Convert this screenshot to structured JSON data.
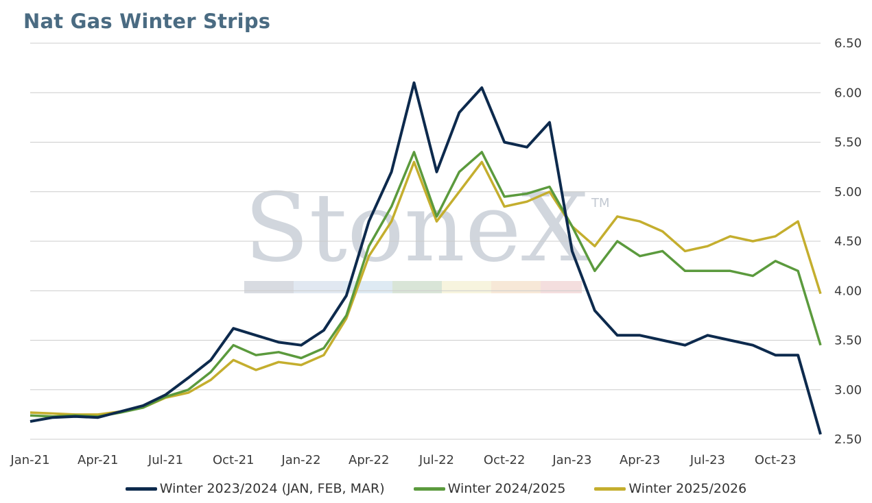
{
  "title": "Nat Gas Winter Strips",
  "watermark": {
    "text": "StoneX",
    "mark": "TM"
  },
  "colors": {
    "winter_2023_2024": "#0d2a4d",
    "winter_2024_2025": "#5b9a3d",
    "winter_2025_2026": "#c4ae2e",
    "grid": "#cccccc"
  },
  "chart_data": {
    "type": "line",
    "title": "Nat Gas Winter Strips",
    "xlabel": "",
    "ylabel": "",
    "ylim": [
      2.5,
      6.5
    ],
    "x_tick_labels": [
      "Jan-21",
      "Apr-21",
      "Jul-21",
      "Oct-21",
      "Jan-22",
      "Apr-22",
      "Jul-22",
      "Oct-22",
      "Jan-23",
      "Apr-23",
      "Jul-23",
      "Oct-23"
    ],
    "y_tick_labels": [
      "2.50",
      "3.00",
      "3.50",
      "4.00",
      "4.50",
      "5.00",
      "5.50",
      "6.00",
      "6.50"
    ],
    "y_ticks": [
      2.5,
      3.0,
      3.5,
      4.0,
      4.5,
      5.0,
      5.5,
      6.0,
      6.5
    ],
    "grid": true,
    "legend_position": "bottom",
    "x": [
      "Jan-21",
      "Feb-21",
      "Mar-21",
      "Apr-21",
      "May-21",
      "Jun-21",
      "Jul-21",
      "Aug-21",
      "Sep-21",
      "Oct-21",
      "Nov-21",
      "Dec-21",
      "Jan-22",
      "Feb-22",
      "Mar-22",
      "Apr-22",
      "May-22",
      "Jun-22",
      "Jul-22",
      "Aug-22",
      "Sep-22",
      "Oct-22",
      "Nov-22",
      "Dec-22",
      "Jan-23",
      "Feb-23",
      "Mar-23",
      "Apr-23",
      "May-23",
      "Jun-23",
      "Jul-23",
      "Aug-23",
      "Sep-23",
      "Oct-23",
      "Nov-23",
      "Dec-23"
    ],
    "series": [
      {
        "name": "Winter 2023/2024 (JAN, FEB, MAR)",
        "color": "#0d2a4d",
        "values": [
          2.68,
          2.72,
          2.73,
          2.72,
          2.78,
          2.84,
          2.95,
          3.12,
          3.3,
          3.62,
          3.55,
          3.48,
          3.45,
          3.6,
          3.95,
          4.7,
          5.2,
          6.1,
          5.2,
          5.8,
          6.05,
          5.5,
          5.45,
          5.7,
          4.4,
          3.8,
          3.55,
          3.55,
          3.5,
          3.45,
          3.55,
          3.5,
          3.45,
          3.35,
          3.35,
          2.55
        ]
      },
      {
        "name": "Winter 2024/2025",
        "color": "#5b9a3d",
        "values": [
          2.74,
          2.73,
          2.74,
          2.73,
          2.77,
          2.82,
          2.93,
          3.0,
          3.18,
          3.45,
          3.35,
          3.38,
          3.32,
          3.42,
          3.75,
          4.45,
          4.85,
          5.4,
          4.75,
          5.2,
          5.4,
          4.95,
          4.98,
          5.05,
          4.65,
          4.2,
          4.5,
          4.35,
          4.4,
          4.2,
          4.2,
          4.2,
          4.15,
          4.3,
          4.2,
          3.45
        ]
      },
      {
        "name": "Winter 2025/2026",
        "color": "#c4ae2e",
        "values": [
          2.77,
          2.76,
          2.75,
          2.75,
          2.78,
          2.82,
          2.92,
          2.97,
          3.1,
          3.3,
          3.2,
          3.28,
          3.25,
          3.35,
          3.72,
          4.35,
          4.7,
          5.3,
          4.7,
          5.0,
          5.3,
          4.85,
          4.9,
          5.0,
          4.65,
          4.45,
          4.75,
          4.7,
          4.6,
          4.4,
          4.45,
          4.55,
          4.5,
          4.55,
          4.7,
          3.97
        ]
      }
    ]
  }
}
